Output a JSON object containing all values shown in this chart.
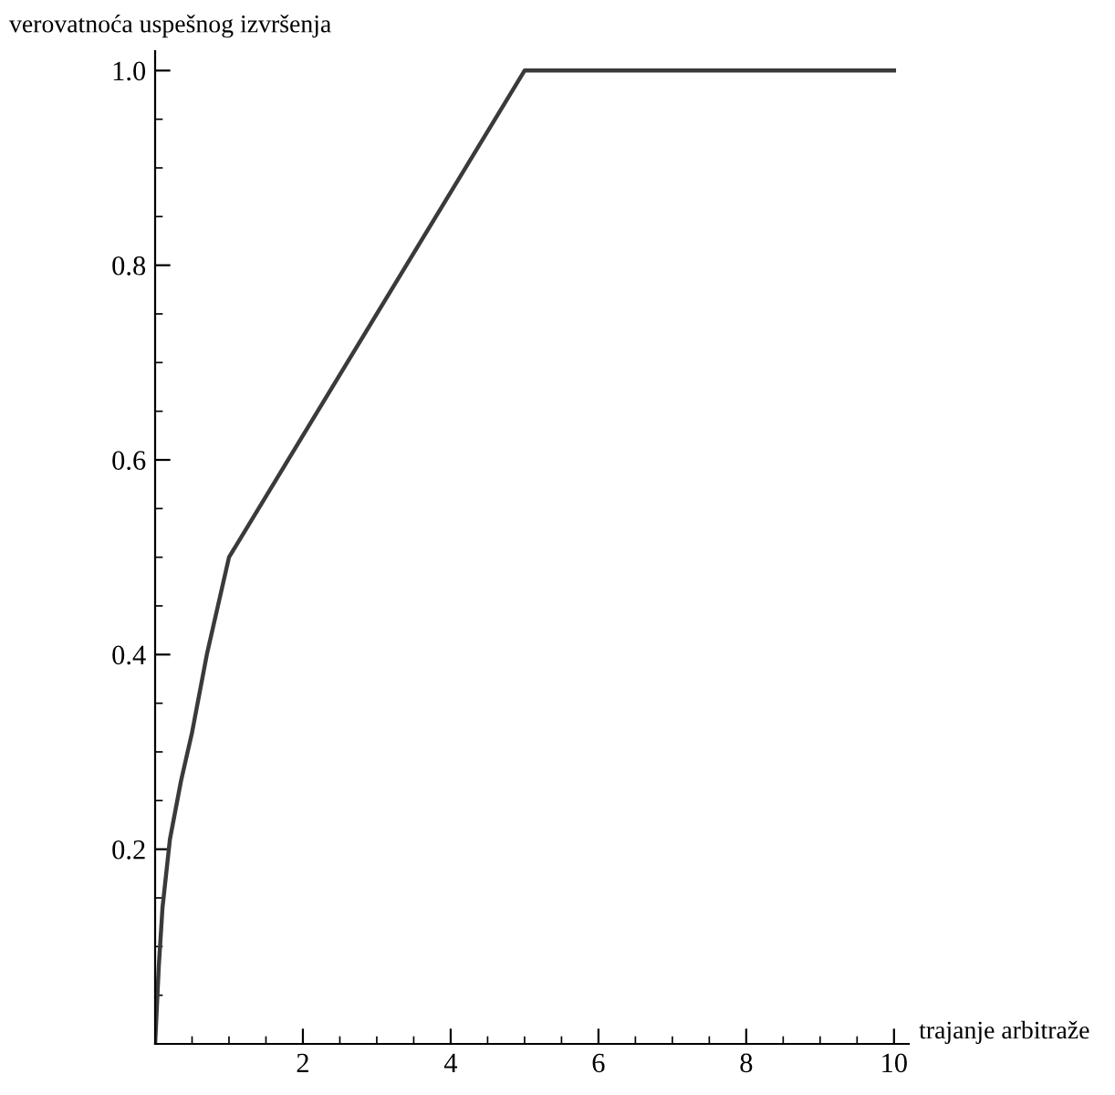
{
  "chart_data": {
    "type": "line",
    "xlabel": "trajanje arbitraže",
    "ylabel": "verovatnoća uspešnog izvršenja",
    "x": [
      0,
      0.05,
      0.1,
      0.2,
      0.35,
      0.5,
      0.7,
      0.85,
      1,
      5,
      10
    ],
    "series": [
      {
        "color": "#3a3a3a",
        "values": [
          0,
          0.08,
          0.14,
          0.21,
          0.27,
          0.32,
          0.4,
          0.45,
          0.5,
          1,
          1
        ]
      }
    ],
    "xlim": [
      0,
      10.2
    ],
    "ylim": [
      0,
      1.02
    ],
    "xticks": [
      2,
      4,
      6,
      8,
      10
    ],
    "yticks": [
      0.2,
      0.4,
      0.6,
      0.8,
      {
        "value": 1,
        "label": "1.0"
      }
    ],
    "grid": false,
    "legend": false
  }
}
